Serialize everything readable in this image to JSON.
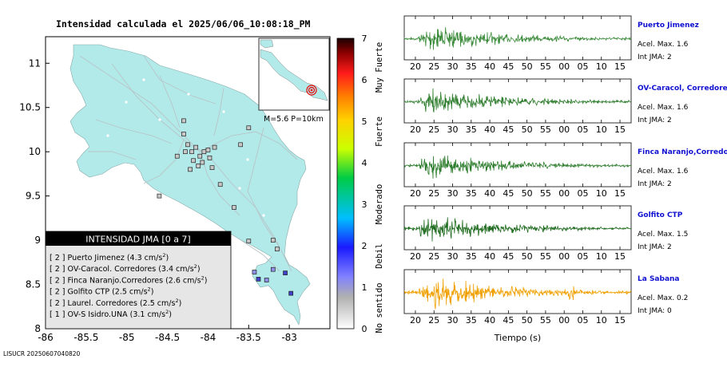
{
  "title": "Intensidad calculada el 2025/06/06_10:08:18_PM",
  "footer_id": "LISUCR 20250607040820",
  "inset_label": "M=5.6 P=10km",
  "colorbar": {
    "ticks": [
      "0",
      "1",
      "2",
      "3",
      "4",
      "5",
      "6",
      "7"
    ],
    "category_labels": [
      "No sentido",
      "Debil",
      "Moderado",
      "Fuerte",
      "Muy Fuerte"
    ]
  },
  "legend": {
    "title": "INTENSIDAD JMA [0 a 7]",
    "items": [
      {
        "intensity": "[ 2 ]",
        "station": "Puerto Jimenez",
        "accel": "(4.3 cm/s",
        "sup": "2",
        ")": ")"
      },
      {
        "intensity": "[ 2 ]",
        "station": "OV-Caracol. Corredores",
        "accel": "(3.4 cm/s",
        "sup": "2",
        ")": ")"
      },
      {
        "intensity": "[ 2 ]",
        "station": "Finca Naranjo.Corredores",
        "accel": "(2.6 cm/s",
        "sup": "2",
        ")": ")"
      },
      {
        "intensity": "[ 2 ]",
        "station": "Golfito CTP",
        "accel": "(2.5 cm/s",
        "sup": "2",
        ")": ")"
      },
      {
        "intensity": "[ 2 ]",
        "station": "Laurel. Corredores",
        "accel": "(2.5 cm/s",
        "sup": "2",
        ")": ")"
      },
      {
        "intensity": "[ 1 ]",
        "station": "OV-S Isidro.UNA",
        "accel": "(3.1 cm/s",
        "sup": "2",
        ")": ")"
      }
    ]
  },
  "traces_xlabel": "Tiempo (s)",
  "trace_ticks": [
    "20",
    "25",
    "30",
    "35",
    "40",
    "45",
    "50",
    "55",
    "00",
    "05",
    "10",
    "15"
  ],
  "traces": [
    {
      "station": "Puerto Jimenez",
      "accel_text": "Acel. Max. 1.6",
      "int_text": "Int JMA: 2",
      "color": "#3c8c3c"
    },
    {
      "station": "OV-Caracol, Corredores",
      "accel_text": "Acel. Max. 1.6",
      "int_text": "Int JMA: 2",
      "color": "#2e7d2e"
    },
    {
      "station": "Finca Naranjo,Corredores",
      "accel_text": "Acel. Max. 1.6",
      "int_text": "Int JMA: 2",
      "color": "#2e7d2e"
    },
    {
      "station": "Golfito CTP",
      "accel_text": "Acel. Max. 1.5",
      "int_text": "Int JMA: 2",
      "color": "#1f6b1f"
    },
    {
      "station": "La Sabana",
      "accel_text": "Acel. Max. 0.2",
      "int_text": "Int JMA: 0",
      "color": "#f0a000"
    }
  ],
  "chart_data": {
    "type": "scatter",
    "title": "Intensidad calculada el 2025/06/06_10:08:18_PM",
    "xlim": [
      -86,
      -82.5
    ],
    "ylim": [
      8,
      11.3
    ],
    "xticks": [
      "-86",
      "-85.5",
      "-85",
      "-84.5",
      "-84",
      "-83.5",
      "-83"
    ],
    "yticks": [
      "8",
      "8.5",
      "9",
      "9.5",
      "10",
      "10.5",
      "11"
    ],
    "station_points": [
      {
        "x": -84.3,
        "y": 10.2,
        "intensity": 0
      },
      {
        "x": -84.25,
        "y": 10.08,
        "intensity": 0
      },
      {
        "x": -84.2,
        "y": 10.0,
        "intensity": 0
      },
      {
        "x": -84.15,
        "y": 10.05,
        "intensity": 0
      },
      {
        "x": -84.1,
        "y": 9.95,
        "intensity": 0
      },
      {
        "x": -84.05,
        "y": 10.0,
        "intensity": 0
      },
      {
        "x": -84.0,
        "y": 10.02,
        "intensity": 0
      },
      {
        "x": -83.98,
        "y": 9.93,
        "intensity": 0
      },
      {
        "x": -84.07,
        "y": 9.88,
        "intensity": 0
      },
      {
        "x": -84.12,
        "y": 9.84,
        "intensity": 0
      },
      {
        "x": -84.18,
        "y": 9.9,
        "intensity": 0
      },
      {
        "x": -84.28,
        "y": 10.0,
        "intensity": 0
      },
      {
        "x": -84.38,
        "y": 9.95,
        "intensity": 0
      },
      {
        "x": -84.3,
        "y": 10.35,
        "intensity": 0
      },
      {
        "x": -84.22,
        "y": 9.8,
        "intensity": 0
      },
      {
        "x": -83.95,
        "y": 9.82,
        "intensity": 0
      },
      {
        "x": -83.92,
        "y": 10.05,
        "intensity": 0
      },
      {
        "x": -83.6,
        "y": 10.08,
        "intensity": 0
      },
      {
        "x": -83.5,
        "y": 10.27,
        "intensity": 0
      },
      {
        "x": -84.6,
        "y": 9.5,
        "intensity": 0
      },
      {
        "x": -83.85,
        "y": 9.63,
        "intensity": 0
      },
      {
        "x": -83.68,
        "y": 9.37,
        "intensity": 0
      },
      {
        "x": -83.5,
        "y": 8.99,
        "intensity": 0
      },
      {
        "x": -83.2,
        "y": 9.0,
        "intensity": 0
      },
      {
        "x": -83.15,
        "y": 8.9,
        "intensity": 0
      },
      {
        "x": -83.28,
        "y": 8.55,
        "intensity": 1
      },
      {
        "x": -83.38,
        "y": 8.56,
        "intensity": 2
      },
      {
        "x": -83.43,
        "y": 8.64,
        "intensity": 1
      },
      {
        "x": -83.05,
        "y": 8.63,
        "intensity": 2
      },
      {
        "x": -82.98,
        "y": 8.4,
        "intensity": 2
      },
      {
        "x": -83.2,
        "y": 8.67,
        "intensity": 1
      }
    ],
    "colorbar_range": [
      0,
      7
    ],
    "traces_time_range": [
      17,
      78
    ]
  }
}
